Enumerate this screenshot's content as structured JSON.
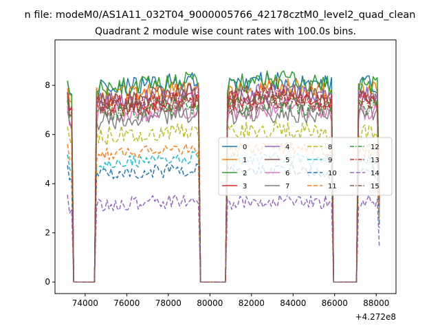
{
  "suptitle": "modeM0/AS1A11_032T04_9000005766_42178cztM0_level2_quad_clean",
  "suptitle_visible_prefix": "n file: ",
  "chart_data": {
    "type": "line",
    "title": "Quadrant 2 module wise count rates with 100.0s bins.",
    "xlabel": "",
    "ylabel": "",
    "x_offset_label": "+4.272e8",
    "x_ticks": [
      74000,
      76000,
      78000,
      80000,
      82000,
      84000,
      86000,
      88000
    ],
    "y_ticks": [
      0,
      2,
      4,
      6,
      8
    ],
    "xlim": [
      72550,
      88950
    ],
    "ylim": [
      -0.47,
      9.85
    ],
    "grid": false,
    "legend": {
      "location": "right-center",
      "columns": 4
    },
    "segments": [
      {
        "start": 73150,
        "end": 73350
      },
      {
        "start": 74550,
        "end": 79450
      },
      {
        "start": 80850,
        "end": 85850
      },
      {
        "start": 87150,
        "end": 88150
      }
    ],
    "gap_ranges": [
      [
        73450,
        74450
      ],
      [
        79550,
        80750
      ],
      [
        85950,
        87050
      ]
    ],
    "series": [
      {
        "name": "0",
        "color": "#1f77b4",
        "dash": "solid",
        "level": 8.05
      },
      {
        "name": "1",
        "color": "#ff7f0e",
        "dash": "solid",
        "level": 7.75
      },
      {
        "name": "2",
        "color": "#2ca02c",
        "dash": "solid",
        "level": 8.05
      },
      {
        "name": "3",
        "color": "#d62728",
        "dash": "solid",
        "level": 7.25
      },
      {
        "name": "4",
        "color": "#9467bd",
        "dash": "solid",
        "level": 7.55
      },
      {
        "name": "5",
        "color": "#8c564b",
        "dash": "solid",
        "level": 7.55
      },
      {
        "name": "6",
        "color": "#e377c2",
        "dash": "solid",
        "level": 6.95
      },
      {
        "name": "7",
        "color": "#7f7f7f",
        "dash": "solid",
        "level": 6.75
      },
      {
        "name": "8",
        "color": "#bcbd22",
        "dash": "dashed",
        "level": 6.1
      },
      {
        "name": "9",
        "color": "#17becf",
        "dash": "dashed",
        "level": 4.95
      },
      {
        "name": "10",
        "color": "#1f77b4",
        "dash": "dashed",
        "level": 4.5
      },
      {
        "name": "11",
        "color": "#ff7f0e",
        "dash": "dashed",
        "level": 5.35
      },
      {
        "name": "12",
        "color": "#2ca02c",
        "dash": "dashdot",
        "level": 7.1
      },
      {
        "name": "13",
        "color": "#d62728",
        "dash": "dashdot",
        "level": 7.4
      },
      {
        "name": "14",
        "color": "#9467bd",
        "dash": "dashed",
        "level": 3.25
      },
      {
        "name": "15",
        "color": "#8c564b",
        "dash": "dashdot",
        "level": 7.25
      }
    ]
  }
}
